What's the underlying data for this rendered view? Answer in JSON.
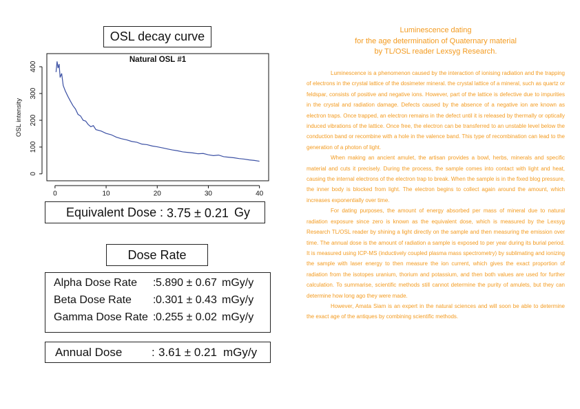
{
  "chart_data": {
    "type": "line",
    "heading": "OSL decay curve",
    "title": "Natural OSL #1",
    "y_label": "OSL intensity",
    "x": [
      0.2,
      0.4,
      0.6,
      0.8,
      1,
      1.3,
      1.6,
      2,
      2.5,
      3,
      3.5,
      4,
      4.5,
      5,
      5.5,
      6,
      6.5,
      7,
      7.5,
      8,
      9,
      10,
      11,
      12,
      13,
      14,
      15,
      16,
      17,
      18,
      19,
      20,
      21,
      22,
      23,
      24,
      25,
      26,
      27,
      28,
      29,
      30,
      31,
      32,
      33,
      34,
      35,
      36,
      37,
      38,
      39,
      40
    ],
    "values": [
      380,
      420,
      395,
      410,
      360,
      375,
      330,
      310,
      290,
      272,
      255,
      242,
      222,
      216,
      200,
      197,
      184,
      176,
      180,
      165,
      160,
      151,
      146,
      137,
      131,
      127,
      121,
      118,
      111,
      109,
      104,
      101,
      97,
      93,
      89,
      86,
      82,
      80,
      78,
      75,
      76,
      71,
      68,
      70,
      64,
      62,
      60,
      57,
      55,
      52,
      50,
      47
    ],
    "color": "#3a4fa3",
    "xlim": [
      -1.6,
      41.8
    ],
    "ylim": [
      -26,
      449
    ],
    "xticks": [
      0,
      10,
      20,
      30,
      40
    ],
    "yticks": [
      0,
      100,
      200,
      300,
      400
    ]
  },
  "equivalent_dose": {
    "label": "Equivalent Dose",
    "separator": ":",
    "value": "3.75 ± 0.21",
    "unit": "Gy"
  },
  "dose_rate": {
    "heading": "Dose Rate",
    "rows": [
      [
        "Alpha Dose Rate",
        ":",
        "5.890 ± 0.67",
        "mGy/y"
      ],
      [
        "Beta Dose Rate",
        ":",
        "0.301 ± 0.43",
        "mGy/y"
      ],
      [
        "Gamma Dose Rate",
        ":",
        "0.255 ± 0.02",
        "mGy/y"
      ]
    ]
  },
  "annual_dose": {
    "label": "Annual Dose",
    "separator": ":",
    "value": "3.61 ± 0.21",
    "unit": "mGy/y"
  },
  "article": {
    "title": [
      "Luminescence dating",
      "for the age determination of Quaternary material",
      "by TL/OSL reader Lexsyg Research."
    ],
    "paragraphs": [
      "Luminescence is a phenomenon caused by the interaction of ionising radiation and the trapping of electrons in the crystal lattice of the dosimeter mineral. the crystal lattice of a mineral, such as quartz or feldspar, consists of positive and negative ions. However, part of the lattice is defective due to impurities in the crystal and radiation damage. Defects caused by the absence of a negative ion are known as electron traps. Once trapped, an electron remains in the defect until it is released by thermally or optically induced vibrations of the lattice. Once free, the electron can be transferred to an unstable level below the conduction band or recombine with a hole in the valence band. This type of recombination can lead to the generation of a photon of light.",
      "When making an ancient amulet, the artisan provides a bowl, herbs, minerals and specific material and cuts it precisely. During the process, the sample comes into contact with light and heat, causing the internal electrons of the electron trap to break. When the sample is in the fixed blog pressure, the inner body is blocked from light. The electron begins to collect again around the amount, which increases exponentially over time.",
      "For dating purposes, the amount of energy absorbed per mass of mineral due to natural radiation exposure since zero is known as the equivalent dose, which is measured by the Lexsyg Research TL/OSL reader by shining a light directly on the sample and then measuring the emission over time. The annual dose is the amount of radiation a sample is exposed to per year during its burial period. It is measured using ICP-MS (inductively coupled plasma mass spectrometry) by sublimating and ionizing the sample with laser energy to then measure the ion current, which gives the exact proportion of radiation from the isotopes uranium, thorium and potassium, and then both values are used for further calculation. To summarise, scientific methods still cannot determine the purity of amulets, but they can determine how long ago they were made.",
      "However, Amata Siam is an expert in the natural sciences and will soon be able to determine the exact age of the antiques by combining scientific methods."
    ]
  }
}
